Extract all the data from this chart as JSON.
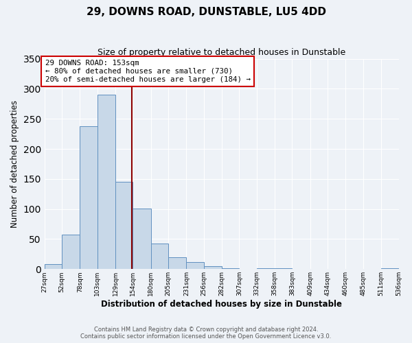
{
  "title": "29, DOWNS ROAD, DUNSTABLE, LU5 4DD",
  "subtitle": "Size of property relative to detached houses in Dunstable",
  "xlabel": "Distribution of detached houses by size in Dunstable",
  "ylabel": "Number of detached properties",
  "footer_line1": "Contains HM Land Registry data © Crown copyright and database right 2024.",
  "footer_line2": "Contains public sector information licensed under the Open Government Licence v3.0.",
  "bin_edges": [
    27,
    52,
    78,
    103,
    129,
    154,
    180,
    205,
    231,
    256,
    282,
    307,
    332,
    358,
    383,
    409,
    434,
    460,
    485,
    511,
    536
  ],
  "bar_heights": [
    8,
    57,
    238,
    290,
    145,
    101,
    42,
    20,
    12,
    5,
    1,
    0,
    2,
    1,
    0,
    0,
    0,
    0,
    0,
    1
  ],
  "bar_color": "#c8d8e8",
  "bar_edge_color": "#6090c0",
  "property_size": 153,
  "vline_color": "#8b0000",
  "annotation_line1": "29 DOWNS ROAD: 153sqm",
  "annotation_line2": "← 80% of detached houses are smaller (730)",
  "annotation_line3": "20% of semi-detached houses are larger (184) →",
  "annotation_box_color": "#ffffff",
  "annotation_border_color": "#cc0000",
  "ylim": [
    0,
    350
  ],
  "background_color": "#eef2f7",
  "grid_color": "#ffffff",
  "tick_labels": [
    "27sqm",
    "52sqm",
    "78sqm",
    "103sqm",
    "129sqm",
    "154sqm",
    "180sqm",
    "205sqm",
    "231sqm",
    "256sqm",
    "282sqm",
    "307sqm",
    "332sqm",
    "358sqm",
    "383sqm",
    "409sqm",
    "434sqm",
    "460sqm",
    "485sqm",
    "511sqm",
    "536sqm"
  ],
  "yticks": [
    0,
    50,
    100,
    150,
    200,
    250,
    300,
    350
  ]
}
